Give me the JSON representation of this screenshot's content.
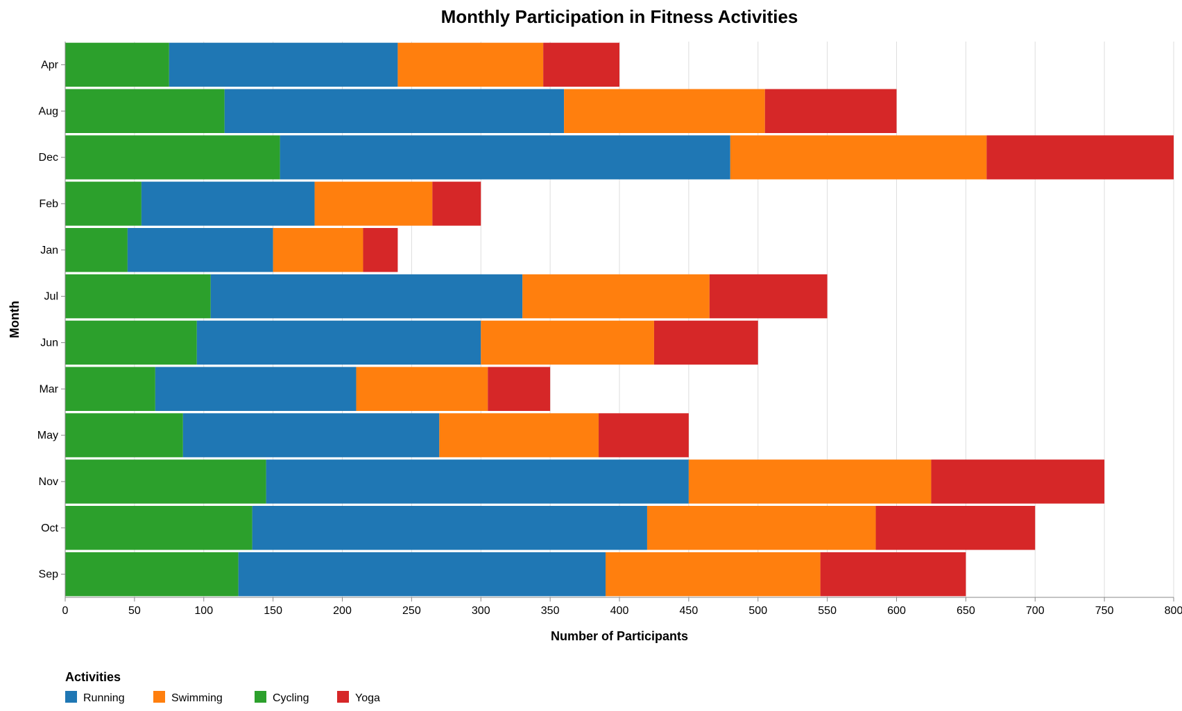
{
  "chart_data": {
    "type": "bar",
    "orientation": "horizontal",
    "stacked": true,
    "title": "Monthly Participation in Fitness Activities",
    "xlabel": "Number of Participants",
    "ylabel": "Month",
    "xlim": [
      0,
      800
    ],
    "x_ticks": [
      0,
      50,
      100,
      150,
      200,
      250,
      300,
      350,
      400,
      450,
      500,
      550,
      600,
      650,
      700,
      750,
      800
    ],
    "grid": true,
    "categories": [
      "Apr",
      "Aug",
      "Dec",
      "Feb",
      "Jan",
      "Jul",
      "Jun",
      "Mar",
      "May",
      "Nov",
      "Oct",
      "Sep"
    ],
    "stack_order": [
      "Cycling",
      "Running",
      "Swimming",
      "Yoga"
    ],
    "series": [
      {
        "name": "Running",
        "color": "#1f77b4",
        "values": [
          165,
          245,
          325,
          125,
          105,
          225,
          205,
          145,
          185,
          305,
          285,
          265
        ]
      },
      {
        "name": "Swimming",
        "color": "#ff7f0e",
        "values": [
          105,
          145,
          185,
          85,
          65,
          135,
          125,
          95,
          115,
          175,
          165,
          155
        ]
      },
      {
        "name": "Cycling",
        "color": "#2ca02c",
        "values": [
          75,
          115,
          155,
          55,
          45,
          105,
          95,
          65,
          85,
          145,
          135,
          125
        ]
      },
      {
        "name": "Yoga",
        "color": "#d62728",
        "values": [
          55,
          95,
          135,
          35,
          25,
          85,
          75,
          45,
          65,
          125,
          115,
          105
        ]
      }
    ],
    "legend": {
      "title": "Activities",
      "position": "bottom-left"
    }
  }
}
